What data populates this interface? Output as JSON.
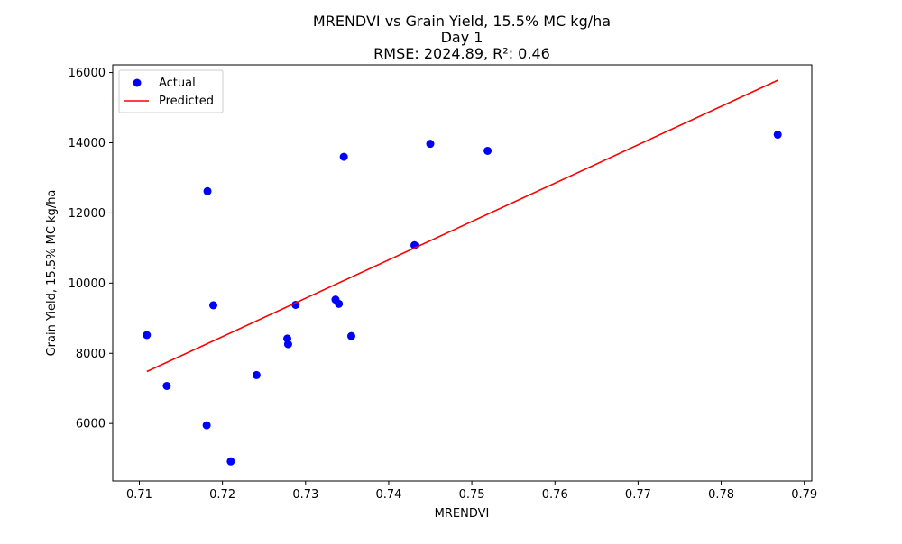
{
  "chart_data": {
    "type": "scatter",
    "title_lines": [
      "MRENDVI vs Grain Yield, 15.5% MC kg/ha",
      "Day 1",
      "RMSE: 2024.89, R²: 0.46"
    ],
    "xlabel": "MRENDVI",
    "ylabel": "Grain Yield, 15.5% MC kg/ha",
    "xlim": [
      0.7068,
      0.7909
    ],
    "ylim": [
      4362,
      16220
    ],
    "xticks": [
      0.71,
      0.72,
      0.73,
      0.74,
      0.75,
      0.76,
      0.77,
      0.78,
      0.79
    ],
    "xtick_labels": [
      "0.71",
      "0.72",
      "0.73",
      "0.74",
      "0.75",
      "0.76",
      "0.77",
      "0.78",
      "0.79"
    ],
    "yticks": [
      6000,
      8000,
      10000,
      12000,
      14000,
      16000
    ],
    "ytick_labels": [
      "6000",
      "8000",
      "10000",
      "12000",
      "14000",
      "16000"
    ],
    "grid": false,
    "legend": {
      "placement": "top-left",
      "entries": [
        {
          "name": "Actual",
          "marker": "circle",
          "color": "#0000ff"
        },
        {
          "name": "Predicted",
          "marker": "line",
          "color": "#ff0000"
        }
      ]
    },
    "series": [
      {
        "name": "Actual",
        "kind": "scatter",
        "color": "#0000ff",
        "points": [
          {
            "x": 0.7109,
            "y": 8520
          },
          {
            "x": 0.7133,
            "y": 7070
          },
          {
            "x": 0.7181,
            "y": 5950
          },
          {
            "x": 0.7182,
            "y": 12620
          },
          {
            "x": 0.7189,
            "y": 9370
          },
          {
            "x": 0.721,
            "y": 4920
          },
          {
            "x": 0.7241,
            "y": 7380
          },
          {
            "x": 0.7278,
            "y": 8420
          },
          {
            "x": 0.7279,
            "y": 8260
          },
          {
            "x": 0.7288,
            "y": 9380
          },
          {
            "x": 0.7336,
            "y": 9530
          },
          {
            "x": 0.734,
            "y": 9410
          },
          {
            "x": 0.7346,
            "y": 13600
          },
          {
            "x": 0.7355,
            "y": 8490
          },
          {
            "x": 0.7431,
            "y": 11080
          },
          {
            "x": 0.745,
            "y": 13970
          },
          {
            "x": 0.7519,
            "y": 13770
          },
          {
            "x": 0.7868,
            "y": 14230
          }
        ]
      },
      {
        "name": "Predicted",
        "kind": "line",
        "color": "#ff0000",
        "points": [
          {
            "x": 0.7109,
            "y": 7480
          },
          {
            "x": 0.7868,
            "y": 15780
          }
        ]
      }
    ]
  }
}
